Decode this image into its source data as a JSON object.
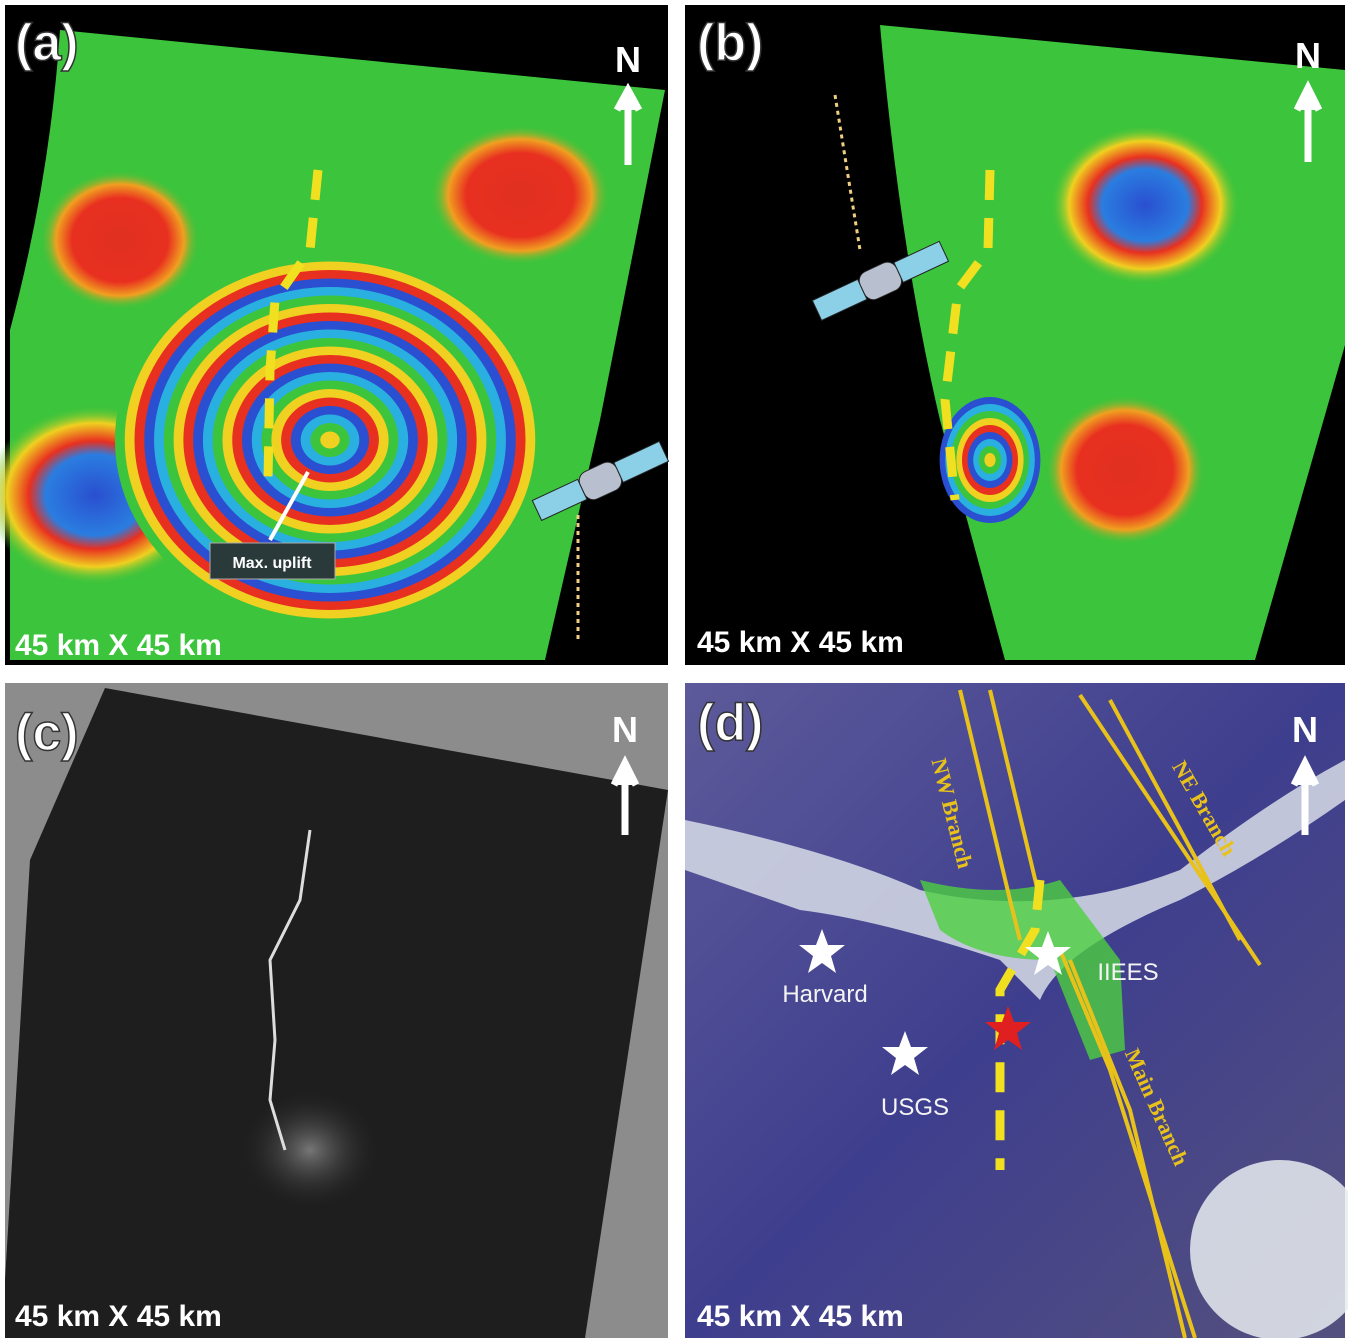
{
  "panels": [
    {
      "label": "(a)",
      "north": "N",
      "scale": "45 km X 45 km",
      "annotation": "Max. uplift"
    },
    {
      "label": "(b)",
      "north": "N",
      "scale": "45 km X 45 km"
    },
    {
      "label": "(c)",
      "north": "N",
      "scale": "45 km X 45 km"
    },
    {
      "label": "(d)",
      "north": "N",
      "scale": "45 km X 45 km",
      "stars": [
        "Harvard",
        "IIEES",
        "USGS"
      ],
      "faults": [
        "NW Branch",
        "NE Branch",
        "Main Branch"
      ]
    }
  ]
}
